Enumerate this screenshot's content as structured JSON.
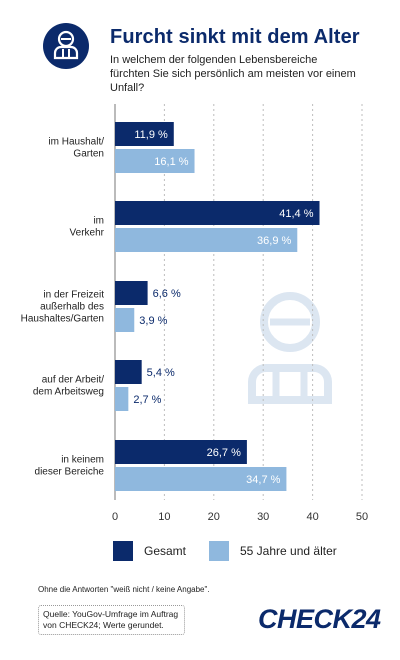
{
  "header": {
    "icon": "person-icon",
    "title": "Furcht sinkt mit dem Alter",
    "subtitle": "In welchem der folgenden Lebensbereiche fürchten Sie sich persönlich am meisten vor einem Unfall?"
  },
  "colors": {
    "gesamt": "#0b2a6b",
    "alt": "#8fb8de",
    "watermark": "#dce6f1"
  },
  "chart_data": {
    "type": "bar",
    "orientation": "horizontal",
    "categories": [
      [
        "im Haushalt/",
        "Garten"
      ],
      [
        "im",
        "Verkehr"
      ],
      [
        "in der Freizeit",
        "außerhalb des",
        "Haushaltes/Garten"
      ],
      [
        "auf der Arbeit/",
        "dem Arbeitsweg"
      ],
      [
        "in keinem",
        "dieser Bereiche"
      ]
    ],
    "series": [
      {
        "name": "Gesamt",
        "values": [
          11.9,
          41.4,
          6.6,
          5.4,
          26.7
        ],
        "labels": [
          "11,9 %",
          "41,4 %",
          "6,6 %",
          "5,4 %",
          "26,7 %"
        ]
      },
      {
        "name": "55 Jahre und älter",
        "values": [
          16.1,
          36.9,
          3.9,
          2.7,
          34.7
        ],
        "labels": [
          "16,1 %",
          "36,9 %",
          "3,9 %",
          "2,7 %",
          "34,7 %"
        ]
      }
    ],
    "xlim": [
      0,
      50
    ],
    "xticks": [
      "0",
      "10",
      "20",
      "30",
      "40",
      "50"
    ],
    "grid": true,
    "legend": "bottom"
  },
  "legend": {
    "gesamt": "Gesamt",
    "alt": "55 Jahre und älter"
  },
  "footer": {
    "note": "Ohne die Antworten \"weiß nicht / keine Angabe\".",
    "source": "Quelle: YouGov-Umfrage im Auftrag von CHECK24; Werte gerundet.",
    "brand": "CHECK24"
  }
}
